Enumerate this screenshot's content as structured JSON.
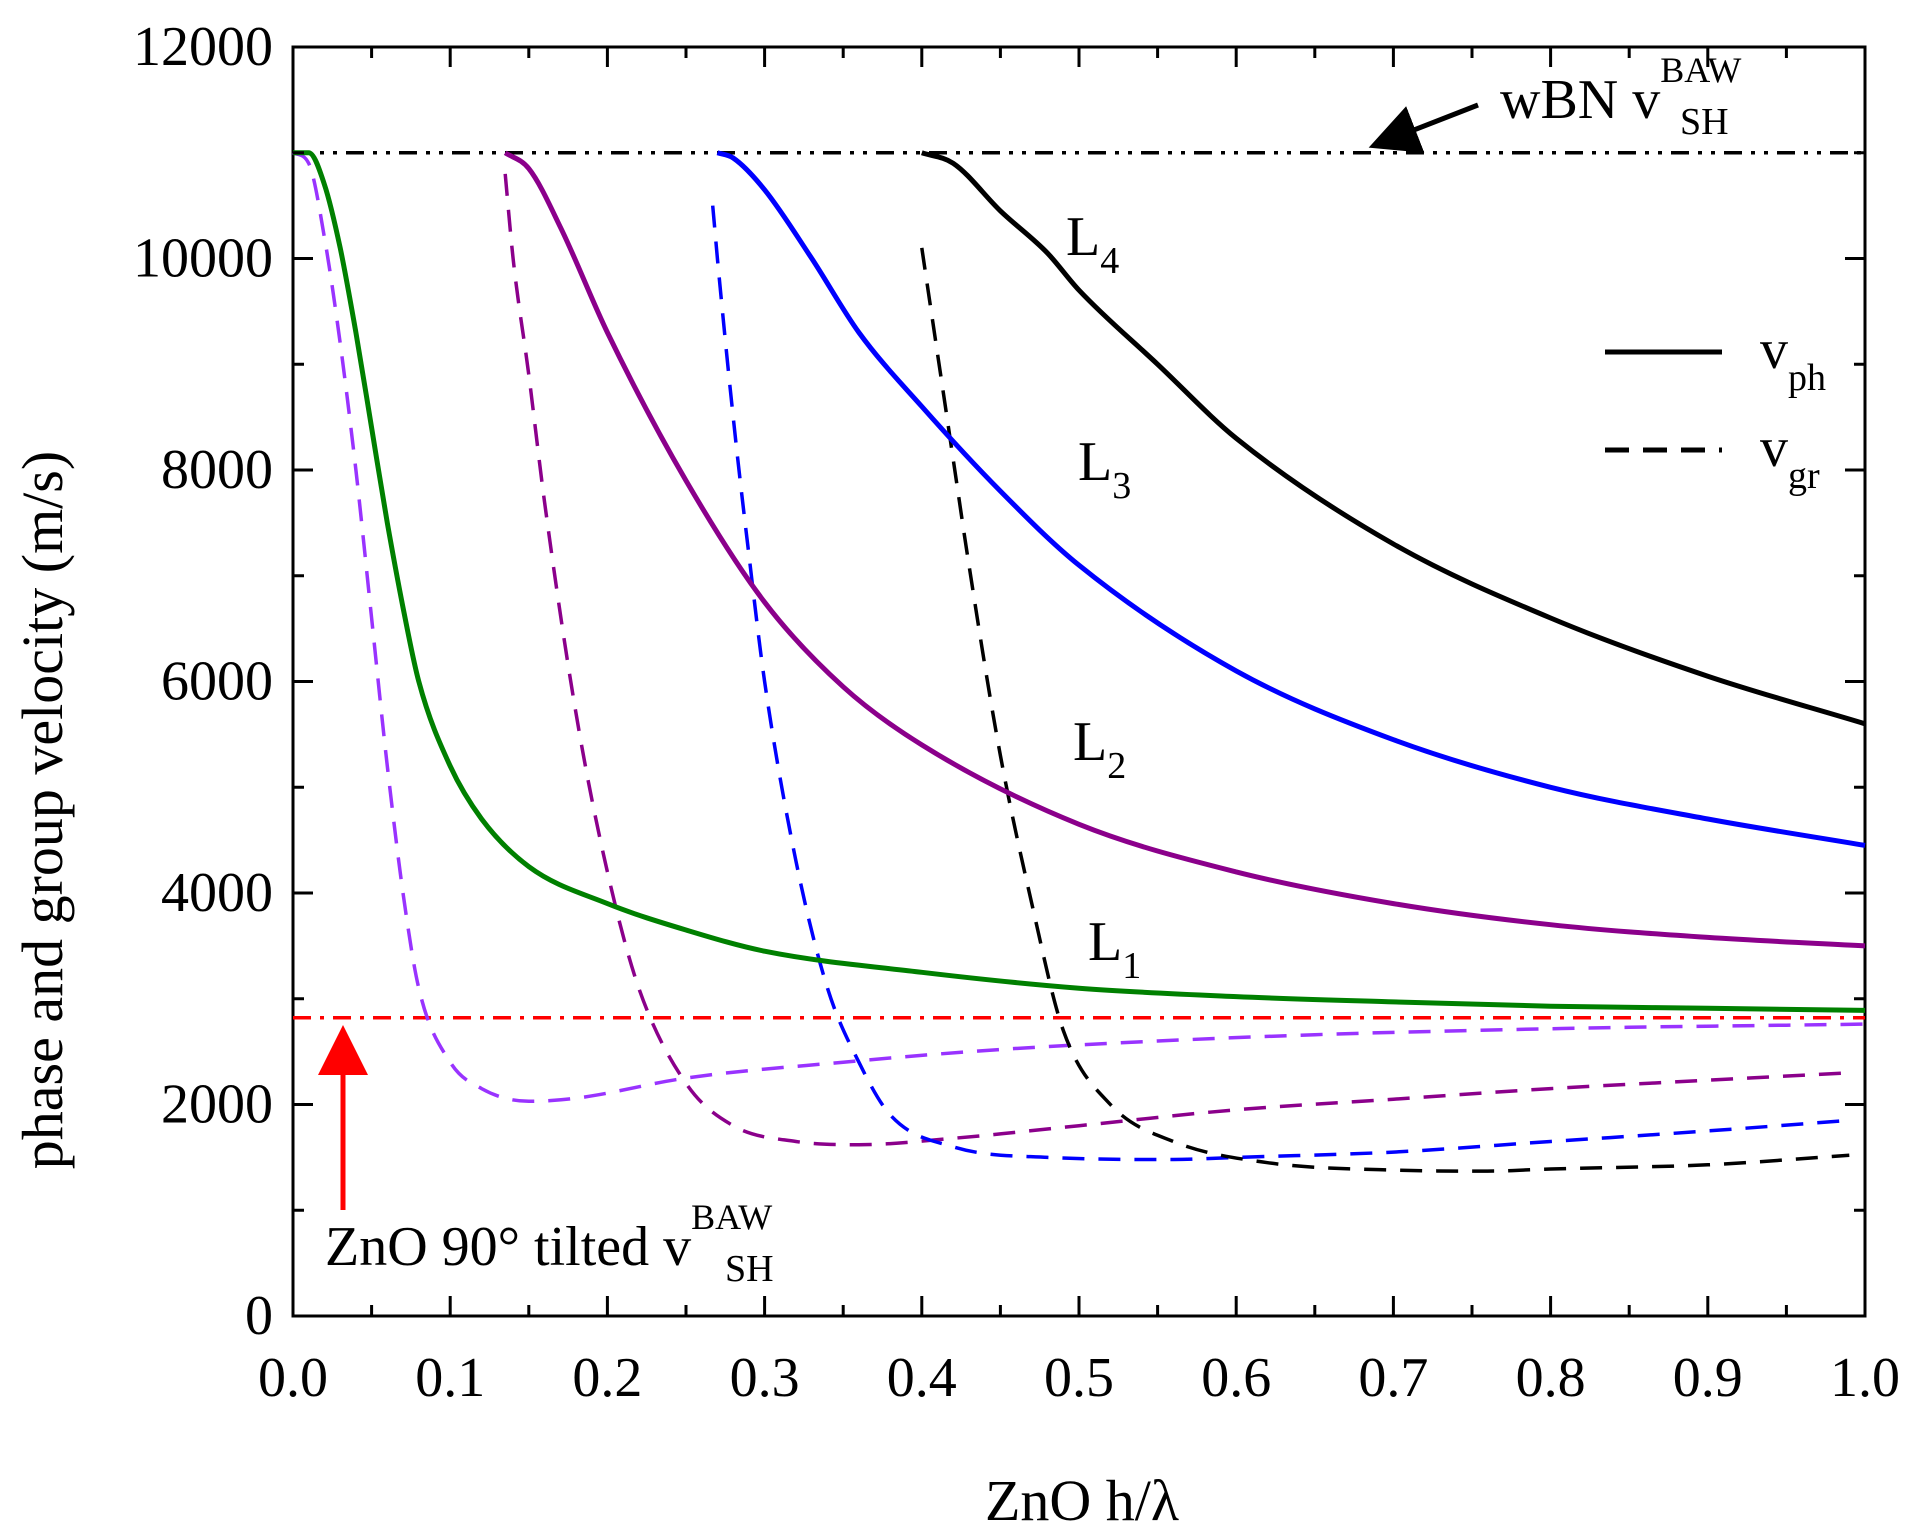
{
  "chart_data": {
    "type": "line",
    "xlabel": "ZnO h/λ",
    "ylabel": "phase and group velocity (m/s)",
    "xlim": [
      0.0,
      1.0
    ],
    "ylim": [
      0,
      12000
    ],
    "xticks": [
      "0.0",
      "0.1",
      "0.2",
      "0.3",
      "0.4",
      "0.5",
      "0.6",
      "0.7",
      "0.8",
      "0.9",
      "1.0"
    ],
    "yticks": [
      "0",
      "2000",
      "4000",
      "6000",
      "8000",
      "10000",
      "12000"
    ],
    "grid": false,
    "legend": {
      "position": "right",
      "entries": [
        {
          "base": "v",
          "sub": "ph",
          "style": "solid"
        },
        {
          "base": "v",
          "sub": "gr",
          "style": "dashed"
        }
      ]
    },
    "reference_lines": [
      {
        "name": "wBN",
        "value": 11000,
        "color": "#000000",
        "style": "dash-dot-dot",
        "label": {
          "pre": "wBN v",
          "sup": "BAW",
          "sub": "SH"
        }
      },
      {
        "name": "ZnO",
        "value": 2820,
        "color": "#ff0000",
        "style": "dash-dot",
        "label": {
          "pre": "ZnO 90° tilted v",
          "sup": "BAW",
          "sub": "SH"
        }
      }
    ],
    "series": [
      {
        "name": "L1",
        "label": "L",
        "label_sub": "1",
        "color": "#008000",
        "phase": {
          "x": [
            0.0,
            0.01,
            0.02,
            0.03,
            0.04,
            0.05,
            0.06,
            0.07,
            0.08,
            0.1,
            0.12,
            0.15,
            0.2,
            0.25,
            0.3,
            0.4,
            0.5,
            0.6,
            0.7,
            0.8,
            0.9,
            1.0
          ],
          "y": [
            11000,
            11000,
            10700,
            10100,
            9300,
            8400,
            7500,
            6700,
            6000,
            5200,
            4700,
            4250,
            3900,
            3650,
            3450,
            3250,
            3100,
            3020,
            2970,
            2930,
            2910,
            2890
          ]
        },
        "group": {
          "x": [
            0.0,
            0.01,
            0.02,
            0.03,
            0.04,
            0.05,
            0.06,
            0.07,
            0.08,
            0.1,
            0.12,
            0.15,
            0.18,
            0.25,
            0.35,
            0.45,
            0.55,
            0.65,
            0.75,
            0.85,
            0.95,
            1.0
          ],
          "y": [
            11000,
            10900,
            10200,
            9200,
            8000,
            6600,
            5200,
            4000,
            3100,
            2400,
            2150,
            2030,
            2060,
            2250,
            2400,
            2520,
            2600,
            2660,
            2700,
            2730,
            2750,
            2760
          ]
        }
      },
      {
        "name": "L2",
        "label": "L",
        "label_sub": "2",
        "color": "#8b008b",
        "phase": {
          "x": [
            0.135,
            0.15,
            0.17,
            0.2,
            0.25,
            0.3,
            0.35,
            0.4,
            0.5,
            0.6,
            0.7,
            0.8,
            0.9,
            1.0
          ],
          "y": [
            11000,
            10850,
            10300,
            9300,
            7900,
            6750,
            5950,
            5400,
            4650,
            4200,
            3900,
            3700,
            3580,
            3500
          ]
        },
        "group": {
          "x": [
            0.135,
            0.14,
            0.15,
            0.16,
            0.18,
            0.2,
            0.22,
            0.25,
            0.28,
            0.32,
            0.36,
            0.42,
            0.5,
            0.6,
            0.7,
            0.8,
            0.9,
            0.99
          ],
          "y": [
            10800,
            10000,
            8900,
            7700,
            5700,
            4200,
            3100,
            2200,
            1800,
            1650,
            1620,
            1680,
            1800,
            1950,
            2050,
            2150,
            2230,
            2300
          ]
        }
      },
      {
        "name": "L3",
        "label": "L",
        "label_sub": "3",
        "color": "#0000ff",
        "phase": {
          "x": [
            0.27,
            0.28,
            0.3,
            0.33,
            0.36,
            0.4,
            0.45,
            0.5,
            0.6,
            0.7,
            0.8,
            0.9,
            1.0
          ],
          "y": [
            11000,
            10950,
            10650,
            10000,
            9300,
            8600,
            7800,
            7100,
            6100,
            5450,
            5000,
            4700,
            4450
          ]
        },
        "group": {
          "x": [
            0.267,
            0.27,
            0.28,
            0.29,
            0.3,
            0.32,
            0.34,
            0.36,
            0.38,
            0.42,
            0.48,
            0.56,
            0.6,
            0.7,
            0.8,
            0.9,
            0.99
          ],
          "y": [
            10500,
            10000,
            8500,
            7200,
            6000,
            4300,
            3100,
            2400,
            1900,
            1600,
            1500,
            1480,
            1500,
            1550,
            1650,
            1750,
            1850
          ]
        }
      },
      {
        "name": "L4",
        "label": "L",
        "label_sub": "4",
        "color": "#000000",
        "phase": {
          "x": [
            0.4,
            0.42,
            0.45,
            0.48,
            0.5,
            0.55,
            0.6,
            0.7,
            0.8,
            0.9,
            1.0
          ],
          "y": [
            11000,
            10900,
            10450,
            10050,
            9700,
            9000,
            8300,
            7300,
            6600,
            6050,
            5600
          ]
        },
        "group": {
          "x": [
            0.4,
            0.41,
            0.42,
            0.43,
            0.45,
            0.47,
            0.49,
            0.52,
            0.56,
            0.62,
            0.7,
            0.76,
            0.8,
            0.9,
            0.99
          ],
          "y": [
            10100,
            9100,
            8100,
            7100,
            5300,
            3900,
            2700,
            2000,
            1650,
            1450,
            1380,
            1370,
            1390,
            1430,
            1520
          ]
        }
      }
    ]
  }
}
